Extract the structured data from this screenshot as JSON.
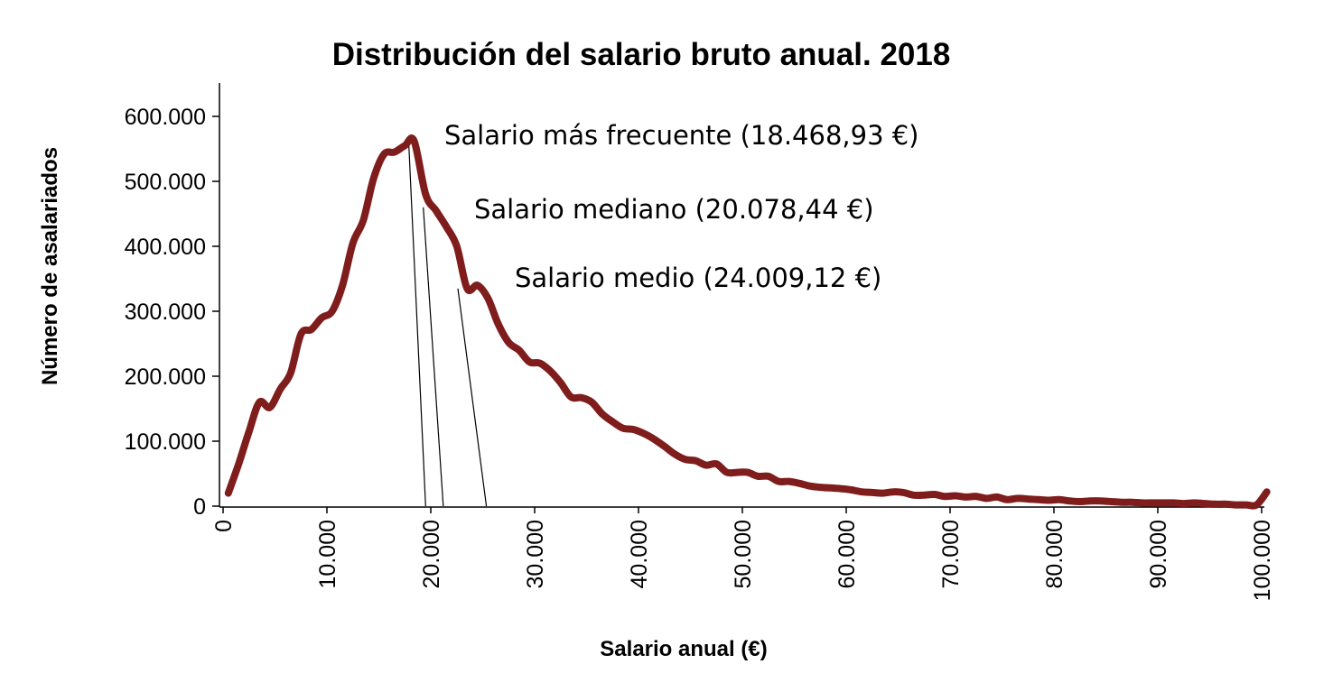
{
  "chart_data": {
    "type": "line",
    "title": "Distribución del salario bruto anual. 2018",
    "xlabel": "Salario anual (€)",
    "ylabel": "Número de asalariados",
    "xlim": [
      0,
      100000
    ],
    "ylim": [
      0,
      600000
    ],
    "x_ticks": [
      0,
      10000,
      20000,
      30000,
      40000,
      50000,
      60000,
      70000,
      80000,
      90000,
      100000
    ],
    "x_tick_labels": [
      "0",
      "10.000",
      "20.000",
      "30.000",
      "40.000",
      "50.000",
      "60.000",
      "70.000",
      "80.000",
      "90.000",
      "100.000"
    ],
    "y_ticks": [
      0,
      100000,
      200000,
      300000,
      400000,
      500000,
      600000
    ],
    "y_tick_labels": [
      "0",
      "100.000",
      "200.000",
      "300.000",
      "400.000",
      "500.000",
      "600.000"
    ],
    "grid": false,
    "series": [
      {
        "color": "#7f1d1d",
        "points": [
          [
            500,
            20000
          ],
          [
            1500,
            65000
          ],
          [
            2500,
            115000
          ],
          [
            3500,
            160000
          ],
          [
            4500,
            152000
          ],
          [
            5500,
            180000
          ],
          [
            6500,
            205000
          ],
          [
            7500,
            265000
          ],
          [
            8500,
            272000
          ],
          [
            9500,
            290000
          ],
          [
            10500,
            300000
          ],
          [
            11500,
            340000
          ],
          [
            12500,
            405000
          ],
          [
            13500,
            440000
          ],
          [
            14500,
            505000
          ],
          [
            15500,
            542000
          ],
          [
            16500,
            545000
          ],
          [
            17500,
            555000
          ],
          [
            18400,
            562000
          ],
          [
            19500,
            480000
          ],
          [
            20500,
            455000
          ],
          [
            21500,
            430000
          ],
          [
            22500,
            400000
          ],
          [
            23500,
            335000
          ],
          [
            24500,
            340000
          ],
          [
            25500,
            320000
          ],
          [
            26500,
            280000
          ],
          [
            27500,
            252000
          ],
          [
            28500,
            240000
          ],
          [
            29500,
            222000
          ],
          [
            30500,
            220000
          ],
          [
            31500,
            208000
          ],
          [
            32500,
            190000
          ],
          [
            33500,
            168000
          ],
          [
            34500,
            167000
          ],
          [
            35500,
            160000
          ],
          [
            36500,
            142000
          ],
          [
            37500,
            130000
          ],
          [
            38500,
            120000
          ],
          [
            39500,
            118000
          ],
          [
            40500,
            112000
          ],
          [
            41500,
            103000
          ],
          [
            42500,
            92000
          ],
          [
            43500,
            80000
          ],
          [
            44500,
            72000
          ],
          [
            45500,
            70000
          ],
          [
            46500,
            63000
          ],
          [
            47500,
            65000
          ],
          [
            48500,
            52000
          ],
          [
            49500,
            52000
          ],
          [
            50500,
            52000
          ],
          [
            51500,
            46000
          ],
          [
            52500,
            46000
          ],
          [
            53500,
            38000
          ],
          [
            54500,
            38000
          ],
          [
            55500,
            35000
          ],
          [
            56500,
            31000
          ],
          [
            57500,
            29000
          ],
          [
            58500,
            28000
          ],
          [
            59500,
            27000
          ],
          [
            60500,
            25000
          ],
          [
            61500,
            22000
          ],
          [
            62500,
            21000
          ],
          [
            63500,
            20000
          ],
          [
            64500,
            22000
          ],
          [
            65500,
            21000
          ],
          [
            66500,
            17000
          ],
          [
            67500,
            17000
          ],
          [
            68500,
            18000
          ],
          [
            69500,
            15000
          ],
          [
            70500,
            16000
          ],
          [
            71500,
            14000
          ],
          [
            72500,
            15000
          ],
          [
            73500,
            12000
          ],
          [
            74500,
            14000
          ],
          [
            75500,
            10000
          ],
          [
            76500,
            12000
          ],
          [
            77500,
            11000
          ],
          [
            78500,
            10000
          ],
          [
            79500,
            9000
          ],
          [
            80500,
            10000
          ],
          [
            81500,
            8000
          ],
          [
            82500,
            7000
          ],
          [
            83500,
            8000
          ],
          [
            84500,
            8000
          ],
          [
            85500,
            7000
          ],
          [
            86500,
            6000
          ],
          [
            87500,
            6000
          ],
          [
            88500,
            5000
          ],
          [
            89500,
            5000
          ],
          [
            90500,
            5000
          ],
          [
            91500,
            5000
          ],
          [
            92500,
            4000
          ],
          [
            93500,
            5000
          ],
          [
            94500,
            4000
          ],
          [
            95500,
            3000
          ],
          [
            96500,
            3000
          ],
          [
            97500,
            2000
          ],
          [
            98500,
            2000
          ],
          [
            99500,
            2000
          ],
          [
            100500,
            22000
          ]
        ]
      }
    ],
    "annotations": [
      {
        "text": "Salario más frecuente (18.468,93 €)",
        "x": 18468.93,
        "curve_y": 562000
      },
      {
        "text": "Salario mediano (20.078,44 €)",
        "x": 20078.44,
        "curve_y": 460000
      },
      {
        "text": "Salario medio (24.009,12 €)",
        "x": 24009.12,
        "curve_y": 335000
      }
    ]
  }
}
